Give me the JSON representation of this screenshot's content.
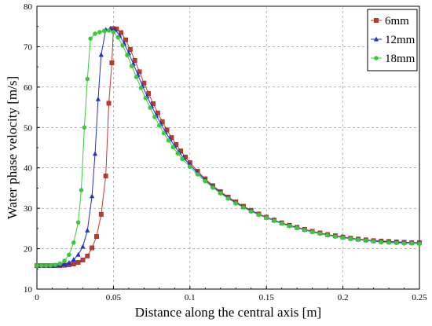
{
  "chart_data": {
    "type": "line",
    "title": "",
    "xlabel": "Distance along the central axis [m]",
    "ylabel": "Water phase velocity [m/s]",
    "xlim": [
      0,
      0.25
    ],
    "ylim": [
      10,
      80
    ],
    "x_ticks": [
      "0",
      "0.05",
      "0.1",
      "0.15",
      "0.2",
      "0.25"
    ],
    "y_ticks": [
      "10",
      "20",
      "30",
      "40",
      "50",
      "60",
      "70",
      "80"
    ],
    "grid": "dashed horizontal and vertical lines at major ticks",
    "legend_position": "top-right",
    "series": [
      {
        "name": "6mm",
        "color": "#c0392b",
        "marker": "square",
        "points": [
          [
            0,
            15.8
          ],
          [
            0.003,
            15.8
          ],
          [
            0.006,
            15.8
          ],
          [
            0.009,
            15.8
          ],
          [
            0.012,
            15.8
          ],
          [
            0.015,
            15.8
          ],
          [
            0.018,
            15.9
          ],
          [
            0.021,
            16
          ],
          [
            0.024,
            16.2
          ],
          [
            0.027,
            16.6
          ],
          [
            0.03,
            17.2
          ],
          [
            0.033,
            18.2
          ],
          [
            0.036,
            20.2
          ],
          [
            0.039,
            23
          ],
          [
            0.042,
            28.5
          ],
          [
            0.045,
            38
          ],
          [
            0.047,
            56
          ],
          [
            0.049,
            66
          ],
          [
            0.05,
            74.5
          ],
          [
            0.052,
            74.4
          ],
          [
            0.055,
            73.5
          ],
          [
            0.058,
            71.7
          ],
          [
            0.061,
            69.3
          ],
          [
            0.064,
            66.6
          ],
          [
            0.067,
            63.8
          ],
          [
            0.07,
            61
          ],
          [
            0.073,
            58.4
          ],
          [
            0.076,
            55.9
          ],
          [
            0.079,
            53.6
          ],
          [
            0.082,
            51.4
          ],
          [
            0.085,
            49.4
          ],
          [
            0.088,
            47.5
          ],
          [
            0.091,
            45.8
          ],
          [
            0.094,
            44.2
          ],
          [
            0.097,
            42.7
          ],
          [
            0.1,
            41.3
          ],
          [
            0.105,
            39.2
          ],
          [
            0.11,
            37.3
          ],
          [
            0.115,
            35.6
          ],
          [
            0.12,
            34.1
          ],
          [
            0.125,
            32.8
          ],
          [
            0.13,
            31.6
          ],
          [
            0.135,
            30.5
          ],
          [
            0.14,
            29.5
          ],
          [
            0.145,
            28.6
          ],
          [
            0.15,
            27.8
          ],
          [
            0.155,
            27.1
          ],
          [
            0.16,
            26.4
          ],
          [
            0.165,
            25.8
          ],
          [
            0.17,
            25.3
          ],
          [
            0.175,
            24.8
          ],
          [
            0.18,
            24.3
          ],
          [
            0.185,
            23.9
          ],
          [
            0.19,
            23.5
          ],
          [
            0.195,
            23.2
          ],
          [
            0.2,
            22.9
          ],
          [
            0.205,
            22.6
          ],
          [
            0.21,
            22.4
          ],
          [
            0.215,
            22.2
          ],
          [
            0.22,
            22
          ],
          [
            0.225,
            21.9
          ],
          [
            0.23,
            21.8
          ],
          [
            0.235,
            21.7
          ],
          [
            0.24,
            21.6
          ],
          [
            0.245,
            21.5
          ],
          [
            0.25,
            21.5
          ]
        ]
      },
      {
        "name": "12mm",
        "color": "#1f2fd6",
        "marker": "triangle",
        "points": [
          [
            0,
            15.8
          ],
          [
            0.003,
            15.8
          ],
          [
            0.006,
            15.8
          ],
          [
            0.009,
            15.8
          ],
          [
            0.012,
            15.8
          ],
          [
            0.015,
            15.9
          ],
          [
            0.018,
            16.1
          ],
          [
            0.021,
            16.5
          ],
          [
            0.024,
            17.3
          ],
          [
            0.027,
            18.5
          ],
          [
            0.03,
            20.5
          ],
          [
            0.033,
            24.5
          ],
          [
            0.036,
            33
          ],
          [
            0.038,
            43.5
          ],
          [
            0.04,
            57
          ],
          [
            0.042,
            68
          ],
          [
            0.045,
            74.2
          ],
          [
            0.048,
            74.5
          ],
          [
            0.051,
            74.2
          ],
          [
            0.054,
            72.8
          ],
          [
            0.057,
            70.8
          ],
          [
            0.06,
            68.4
          ],
          [
            0.063,
            65.8
          ],
          [
            0.066,
            63
          ],
          [
            0.069,
            60.3
          ],
          [
            0.072,
            57.7
          ],
          [
            0.075,
            55.3
          ],
          [
            0.078,
            53
          ],
          [
            0.081,
            50.9
          ],
          [
            0.084,
            48.9
          ],
          [
            0.087,
            47.1
          ],
          [
            0.09,
            45.4
          ],
          [
            0.093,
            43.8
          ],
          [
            0.096,
            42.4
          ],
          [
            0.1,
            40.8
          ],
          [
            0.105,
            38.8
          ],
          [
            0.11,
            37
          ],
          [
            0.115,
            35.4
          ],
          [
            0.12,
            33.9
          ],
          [
            0.125,
            32.6
          ],
          [
            0.13,
            31.4
          ],
          [
            0.135,
            30.3
          ],
          [
            0.14,
            29.4
          ],
          [
            0.145,
            28.5
          ],
          [
            0.15,
            27.7
          ],
          [
            0.155,
            27
          ],
          [
            0.16,
            26.3
          ],
          [
            0.165,
            25.7
          ],
          [
            0.17,
            25.2
          ],
          [
            0.175,
            24.7
          ],
          [
            0.18,
            24.2
          ],
          [
            0.185,
            23.8
          ],
          [
            0.19,
            23.4
          ],
          [
            0.195,
            23.1
          ],
          [
            0.2,
            22.8
          ],
          [
            0.205,
            22.5
          ],
          [
            0.21,
            22.3
          ],
          [
            0.215,
            22.1
          ],
          [
            0.22,
            21.9
          ],
          [
            0.225,
            21.8
          ],
          [
            0.23,
            21.7
          ],
          [
            0.235,
            21.6
          ],
          [
            0.24,
            21.5
          ],
          [
            0.245,
            21.5
          ],
          [
            0.25,
            21.5
          ]
        ]
      },
      {
        "name": "18mm",
        "color": "#3cc83c",
        "marker": "circle",
        "points": [
          [
            0,
            15.8
          ],
          [
            0.003,
            15.8
          ],
          [
            0.006,
            15.8
          ],
          [
            0.009,
            15.9
          ],
          [
            0.012,
            16
          ],
          [
            0.015,
            16.3
          ],
          [
            0.018,
            17
          ],
          [
            0.021,
            18.5
          ],
          [
            0.024,
            21.5
          ],
          [
            0.027,
            26.5
          ],
          [
            0.029,
            34.5
          ],
          [
            0.031,
            50
          ],
          [
            0.033,
            62
          ],
          [
            0.035,
            72
          ],
          [
            0.038,
            73.2
          ],
          [
            0.041,
            73.6
          ],
          [
            0.044,
            73.9
          ],
          [
            0.047,
            74
          ],
          [
            0.05,
            73.6
          ],
          [
            0.053,
            72.3
          ],
          [
            0.056,
            70.3
          ],
          [
            0.059,
            67.9
          ],
          [
            0.062,
            65.2
          ],
          [
            0.065,
            62.5
          ],
          [
            0.068,
            59.8
          ],
          [
            0.071,
            57.3
          ],
          [
            0.074,
            54.9
          ],
          [
            0.077,
            52.6
          ],
          [
            0.08,
            50.5
          ],
          [
            0.083,
            48.6
          ],
          [
            0.086,
            46.8
          ],
          [
            0.089,
            45.1
          ],
          [
            0.092,
            43.6
          ],
          [
            0.095,
            42.2
          ],
          [
            0.1,
            40.3
          ],
          [
            0.105,
            38.4
          ],
          [
            0.11,
            36.7
          ],
          [
            0.115,
            35.1
          ],
          [
            0.12,
            33.7
          ],
          [
            0.125,
            32.4
          ],
          [
            0.13,
            31.2
          ],
          [
            0.135,
            30.2
          ],
          [
            0.14,
            29.2
          ],
          [
            0.145,
            28.4
          ],
          [
            0.15,
            27.6
          ],
          [
            0.155,
            26.9
          ],
          [
            0.16,
            26.2
          ],
          [
            0.165,
            25.6
          ],
          [
            0.17,
            25.1
          ],
          [
            0.175,
            24.6
          ],
          [
            0.18,
            24.1
          ],
          [
            0.185,
            23.7
          ],
          [
            0.19,
            23.3
          ],
          [
            0.195,
            23
          ],
          [
            0.2,
            22.7
          ],
          [
            0.205,
            22.4
          ],
          [
            0.21,
            22.2
          ],
          [
            0.215,
            22
          ],
          [
            0.22,
            21.8
          ],
          [
            0.225,
            21.6
          ],
          [
            0.23,
            21.5
          ],
          [
            0.235,
            21.4
          ],
          [
            0.24,
            21.3
          ],
          [
            0.245,
            21.3
          ],
          [
            0.25,
            21.2
          ]
        ]
      }
    ]
  }
}
